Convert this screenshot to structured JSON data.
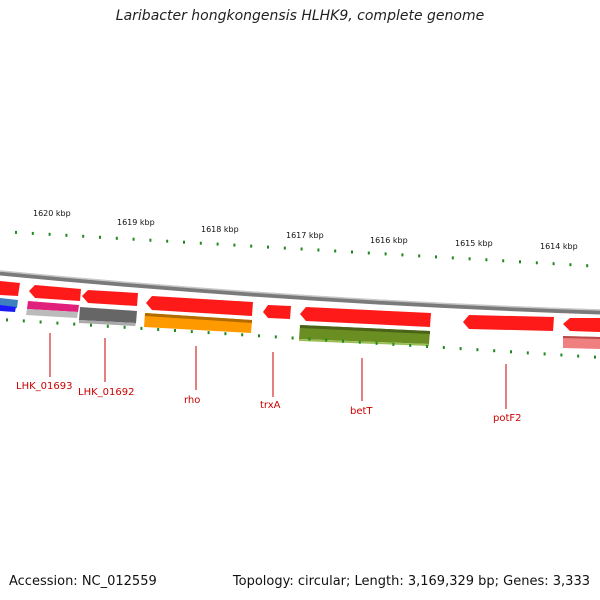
{
  "title": "Laribacter hongkongensis HLHK9, complete genome",
  "footer": {
    "accession": "Accession: NC_012559",
    "summary": "Topology: circular; Length: 3,169,329 bp; Genes: 3,333"
  },
  "scale": {
    "labels": [
      "1620 kbp",
      "1619 kbp",
      "1618 kbp",
      "1617 kbp",
      "1616 kbp",
      "1615 kbp",
      "1614 kbp"
    ]
  },
  "colors": {
    "forward_gene": "#ff1a1a",
    "reverse_gene": "#ff1a1a",
    "rho": "#ff9900",
    "betT": "#6b8e23",
    "gray_gene": "#666666",
    "light_gene": "#bbbbbb",
    "magenta_gene": "#e0207a",
    "blue_gene": "#1a1aff",
    "pink_gene": "#f08080",
    "tick": "#1f8a1f",
    "backbone": "#888888",
    "label": "#cc0000"
  },
  "genes": [
    {
      "label": "LHK_01693",
      "color": "magenta_gene"
    },
    {
      "label": "LHK_01692",
      "color": "gray_gene"
    },
    {
      "label": "rho",
      "color": "rho"
    },
    {
      "label": "trxA",
      "color": "forward_gene"
    },
    {
      "label": "betT",
      "color": "betT"
    },
    {
      "label": "potF2",
      "color": "forward_gene"
    }
  ]
}
